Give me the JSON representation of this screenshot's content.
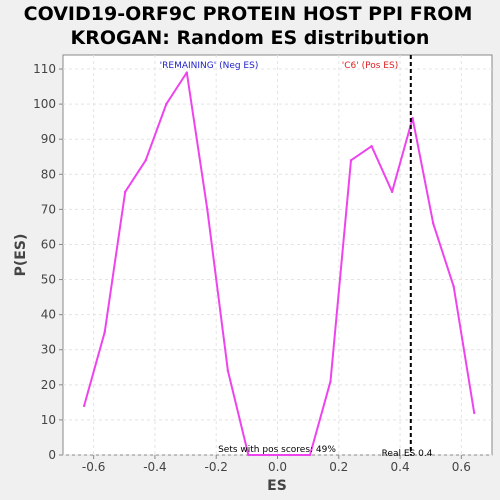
{
  "chart_data": {
    "type": "line",
    "title_line1": "COVID19-ORF9C PROTEIN HOST PPI FROM",
    "title_line2": "KROGAN: Random ES distribution",
    "xlabel": "ES",
    "ylabel": "P(ES)",
    "xlim": [
      -0.7,
      0.7
    ],
    "ylim": [
      0,
      114
    ],
    "x_ticks": [
      -0.6,
      -0.4,
      -0.2,
      0.0,
      0.2,
      0.4,
      0.6
    ],
    "x_tick_labels": [
      "-0.6",
      "-0.4",
      "-0.2",
      "0.0",
      "0.2",
      "0.4",
      "0.6"
    ],
    "y_ticks": [
      0,
      10,
      20,
      30,
      40,
      50,
      60,
      70,
      80,
      90,
      100,
      110
    ],
    "y_tick_labels": [
      "0",
      "10",
      "20",
      "30",
      "40",
      "50",
      "60",
      "70",
      "80",
      "90",
      "100",
      "110"
    ],
    "grid": true,
    "series": [
      {
        "color": "#ee44ee",
        "x": [
          -0.631,
          -0.564,
          -0.497,
          -0.43,
          -0.363,
          -0.296,
          -0.229,
          -0.162,
          -0.095,
          -0.028,
          0.039,
          0.106,
          0.173,
          0.24,
          0.307,
          0.374,
          0.441,
          0.508,
          0.575,
          0.642
        ],
        "y": [
          14,
          35,
          75,
          84,
          100,
          109,
          70,
          24,
          0,
          0,
          0,
          0,
          21,
          84,
          88,
          75,
          96,
          66,
          48,
          12
        ]
      }
    ],
    "real_es": {
      "value": 0.435,
      "label": "Real ES 0.4",
      "color": "#000000"
    },
    "annotations": {
      "neg_label": "'REMAINING' (Neg ES)",
      "neg_color": "#2222cc",
      "pos_label": "'C6' (Pos ES)",
      "pos_color": "#dd2222",
      "pos_scores": "Sets with pos scores: 49%"
    }
  }
}
